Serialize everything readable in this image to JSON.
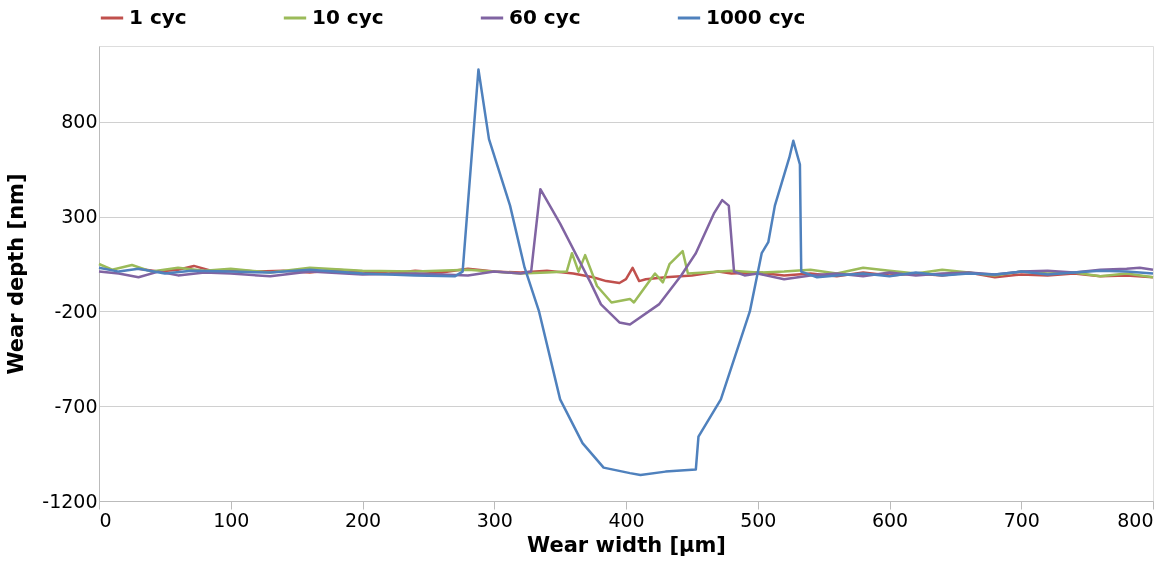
{
  "chart_data": {
    "type": "line",
    "xlabel": "Wear width [µm]",
    "ylabel": "Wear depth [nm]",
    "xlim": [
      0,
      800
    ],
    "xticks": [
      0,
      100,
      200,
      300,
      400,
      500,
      600,
      700,
      800
    ],
    "ylim": [
      -1200,
      1200
    ],
    "yticks": [
      -1200,
      -700,
      -200,
      300,
      800
    ],
    "grid": "y",
    "legend": "top",
    "marker": "none",
    "line_style": "solid",
    "series": [
      {
        "name": "1 cyc",
        "color": "#c0504d",
        "x": [
          30,
          45,
          60,
          72,
          85,
          100,
          120,
          140,
          160,
          180,
          200,
          220,
          240,
          260,
          280,
          300,
          320,
          340,
          360,
          375,
          385,
          395,
          400,
          405,
          410,
          415,
          430,
          450,
          470,
          480,
          500,
          520,
          540,
          560,
          580,
          600,
          620,
          640,
          660,
          680,
          700,
          720,
          740,
          760,
          780,
          800
        ],
        "values": [
          25,
          10,
          20,
          40,
          15,
          20,
          10,
          15,
          5,
          20,
          10,
          0,
          15,
          5,
          25,
          10,
          5,
          15,
          0,
          -20,
          -40,
          -50,
          -30,
          30,
          -40,
          -30,
          -20,
          -10,
          10,
          0,
          5,
          -10,
          0,
          -15,
          5,
          -10,
          0,
          -10,
          5,
          -20,
          -5,
          -10,
          0,
          -15,
          -10,
          -20
        ]
      },
      {
        "name": "10 cyc",
        "color": "#9bbb59",
        "x": [
          0,
          10,
          25,
          40,
          60,
          80,
          100,
          130,
          160,
          200,
          240,
          280,
          320,
          340,
          355,
          359,
          364,
          369,
          378,
          389,
          403,
          406,
          417,
          422,
          428,
          433,
          443,
          447,
          460,
          480,
          500,
          520,
          540,
          560,
          580,
          600,
          620,
          640,
          660,
          680,
          700,
          720,
          740,
          760,
          780,
          800
        ],
        "values": [
          50,
          20,
          45,
          10,
          30,
          15,
          25,
          5,
          30,
          15,
          10,
          20,
          0,
          5,
          10,
          107,
          10,
          97,
          -66,
          -153,
          -134,
          -153,
          -47,
          0,
          -47,
          49,
          118,
          0,
          5,
          15,
          5,
          10,
          20,
          0,
          30,
          15,
          0,
          20,
          5,
          -10,
          10,
          0,
          5,
          -15,
          0,
          -20
        ]
      },
      {
        "name": "60 cyc",
        "color": "#8064a2",
        "x": [
          0,
          15,
          30,
          45,
          60,
          80,
          100,
          130,
          160,
          200,
          240,
          280,
          300,
          320,
          328,
          335,
          350,
          373,
          381,
          395,
          403,
          425,
          442,
          453,
          467,
          473,
          478,
          482,
          490,
          500,
          520,
          540,
          560,
          580,
          600,
          620,
          640,
          660,
          680,
          700,
          720,
          740,
          760,
          780,
          790,
          800
        ],
        "values": [
          10,
          0,
          -20,
          10,
          -10,
          5,
          0,
          -15,
          10,
          -5,
          0,
          -10,
          10,
          0,
          10,
          445,
          263,
          -47,
          -163,
          -258,
          -269,
          -163,
          -9,
          107,
          320,
          387,
          358,
          10,
          -10,
          0,
          -30,
          -10,
          0,
          -15,
          5,
          -10,
          0,
          5,
          -5,
          10,
          15,
          5,
          20,
          25,
          30,
          20
        ]
      },
      {
        "name": "1000 cyc",
        "color": "#4f81bd",
        "x": [
          0,
          15,
          30,
          50,
          70,
          100,
          130,
          160,
          200,
          240,
          270,
          276,
          288,
          296,
          312,
          323,
          334,
          350,
          367,
          383,
          403,
          411,
          430,
          453,
          455,
          472,
          483,
          494,
          503,
          508,
          513,
          524,
          527,
          532,
          533,
          545,
          560,
          580,
          600,
          620,
          640,
          660,
          680,
          700,
          720,
          740,
          760,
          780,
          800
        ],
        "values": [
          30,
          10,
          25,
          0,
          15,
          10,
          5,
          20,
          0,
          -10,
          -15,
          10,
          1076,
          709,
          358,
          32,
          -200,
          -664,
          -895,
          -1024,
          -1053,
          -1063,
          -1045,
          -1034,
          -860,
          -664,
          -432,
          -200,
          107,
          165,
          358,
          612,
          700,
          575,
          10,
          -20,
          -10,
          0,
          -15,
          5,
          -10,
          0,
          -5,
          10,
          -5,
          5,
          15,
          10,
          0
        ]
      }
    ]
  }
}
